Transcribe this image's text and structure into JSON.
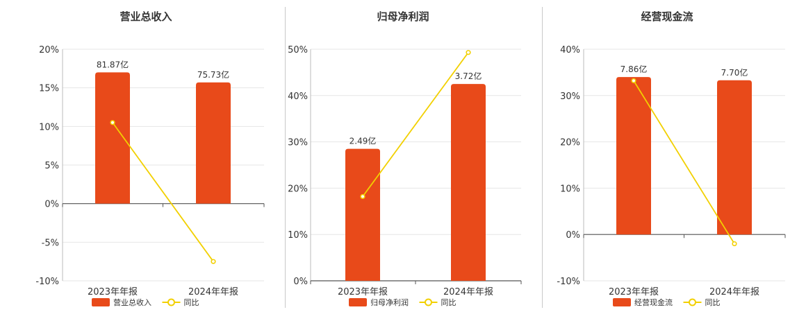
{
  "colors": {
    "bar": "#E84A1A",
    "line": "#F2D000",
    "grid": "#e6e6e6",
    "axis": "#555555",
    "text": "#333333"
  },
  "legend_line_label": "同比",
  "chart_data": [
    {
      "type": "bar",
      "title": "营业总收入",
      "categories": [
        "2023年年报",
        "2024年年报"
      ],
      "series": [
        {
          "name": "营业总收入",
          "type": "bar",
          "values": [
            17.0,
            15.7
          ],
          "labels": [
            "81.87亿",
            "75.73亿"
          ]
        },
        {
          "name": "同比",
          "type": "line",
          "values": [
            10.5,
            -7.5
          ]
        }
      ],
      "ylim": [
        -10,
        20
      ],
      "yticks": [
        "20%",
        "15%",
        "10%",
        "5%",
        "0%",
        "-5%",
        "-10%"
      ],
      "grid": true,
      "legend": "bottom"
    },
    {
      "type": "bar",
      "title": "归母净利润",
      "categories": [
        "2023年年报",
        "2024年年报"
      ],
      "series": [
        {
          "name": "归母净利润",
          "type": "bar",
          "values": [
            28.5,
            42.5
          ],
          "labels": [
            "2.49亿",
            "3.72亿"
          ]
        },
        {
          "name": "同比",
          "type": "line",
          "values": [
            18.2,
            49.3
          ]
        }
      ],
      "ylim": [
        0,
        50
      ],
      "yticks": [
        "50%",
        "40%",
        "30%",
        "20%",
        "10%",
        "0%"
      ],
      "grid": true,
      "legend": "bottom"
    },
    {
      "type": "bar",
      "title": "经营现金流",
      "categories": [
        "2023年年报",
        "2024年年报"
      ],
      "series": [
        {
          "name": "经营现金流",
          "type": "bar",
          "values": [
            34.0,
            33.3
          ],
          "labels": [
            "7.86亿",
            "7.70亿"
          ]
        },
        {
          "name": "同比",
          "type": "line",
          "values": [
            33.2,
            -2.0
          ]
        }
      ],
      "ylim": [
        -10,
        40
      ],
      "yticks": [
        "40%",
        "30%",
        "20%",
        "10%",
        "0%",
        "-10%"
      ],
      "grid": true,
      "legend": "bottom"
    }
  ]
}
